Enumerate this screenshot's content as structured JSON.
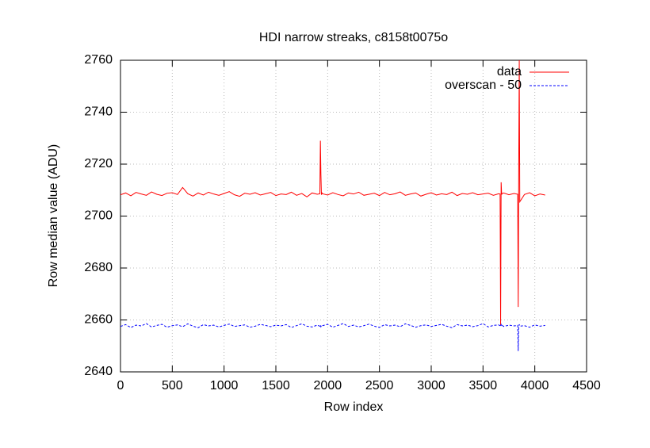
{
  "chart_data": {
    "type": "line",
    "title": "HDI narrow streaks, c8158t0075o",
    "xlabel": "Row index",
    "ylabel": "Row median value (ADU)",
    "x": [
      0,
      50,
      100,
      150,
      200,
      250,
      300,
      350,
      400,
      450,
      500,
      550,
      600,
      650,
      700,
      750,
      800,
      850,
      900,
      950,
      1000,
      1050,
      1100,
      1150,
      1200,
      1250,
      1300,
      1350,
      1400,
      1450,
      1500,
      1550,
      1600,
      1650,
      1700,
      1750,
      1800,
      1850,
      1900,
      1925,
      1930,
      1935,
      1940,
      1945,
      1950,
      2000,
      2050,
      2100,
      2150,
      2200,
      2250,
      2300,
      2350,
      2400,
      2450,
      2500,
      2550,
      2600,
      2650,
      2700,
      2750,
      2800,
      2850,
      2900,
      2950,
      3000,
      3050,
      3100,
      3150,
      3200,
      3250,
      3300,
      3350,
      3400,
      3450,
      3500,
      3550,
      3600,
      3650,
      3665,
      3670,
      3675,
      3680,
      3685,
      3700,
      3750,
      3800,
      3835,
      3840,
      3845,
      3850,
      3855,
      3900,
      3950,
      4000,
      4050,
      4100
    ],
    "series": [
      {
        "name": "data",
        "color": "#ff0000",
        "values": [
          2708.2,
          2708.9,
          2707.8,
          2709.1,
          2708.5,
          2708.0,
          2709.3,
          2708.4,
          2707.9,
          2708.8,
          2709.0,
          2708.3,
          2711.0,
          2708.6,
          2707.7,
          2708.9,
          2708.1,
          2709.2,
          2708.5,
          2708.0,
          2708.7,
          2709.4,
          2708.2,
          2707.6,
          2708.8,
          2708.4,
          2709.0,
          2708.1,
          2708.6,
          2709.1,
          2707.9,
          2708.5,
          2708.3,
          2709.2,
          2708.0,
          2708.7,
          2707.4,
          2708.9,
          2708.4,
          2708.6,
          2729,
          2716,
          2708.2,
          2708.9,
          2708.6,
          2708.1,
          2709.0,
          2708.3,
          2707.8,
          2708.9,
          2708.5,
          2709.2,
          2708.0,
          2708.4,
          2708.8,
          2707.9,
          2709.1,
          2708.2,
          2708.6,
          2709.3,
          2708.0,
          2708.5,
          2708.9,
          2707.7,
          2708.4,
          2709.0,
          2708.1,
          2708.6,
          2708.3,
          2709.2,
          2707.9,
          2708.7,
          2708.4,
          2709.0,
          2708.2,
          2708.5,
          2708.8,
          2708.0,
          2708.6,
          2708.5,
          2658,
          2713,
          2708.3,
          2708.7,
          2708.9,
          2708.2,
          2708.7,
          2708.4,
          2665,
          2720,
          2760,
          2705.5,
          2708.3,
          2709.0,
          2707.8,
          2708.5,
          2708.1
        ]
      },
      {
        "name": "overscan - 50",
        "color": "#0000ff",
        "dash": true,
        "values": [
          2657.5,
          2658.2,
          2657.1,
          2658.0,
          2657.7,
          2658.6,
          2657.3,
          2657.9,
          2658.3,
          2657.2,
          2657.8,
          2658.1,
          2657.4,
          2658.5,
          2657.6,
          2657.0,
          2658.2,
          2657.7,
          2658.0,
          2657.3,
          2657.9,
          2658.4,
          2657.5,
          2657.8,
          2658.1,
          2657.2,
          2657.6,
          2658.3,
          2657.9,
          2657.4,
          2658.0,
          2657.7,
          2658.2,
          2657.1,
          2657.8,
          2658.5,
          2657.6,
          2657.3,
          2658.0,
          2657.6,
          2658.1,
          2657.4,
          2657.9,
          2657.7,
          2657.8,
          2658.3,
          2657.2,
          2657.9,
          2658.6,
          2657.5,
          2658.0,
          2657.3,
          2657.8,
          2658.4,
          2657.6,
          2657.1,
          2658.2,
          2657.7,
          2658.0,
          2657.4,
          2658.5,
          2657.9,
          2657.2,
          2657.8,
          2658.1,
          2657.5,
          2657.9,
          2658.3,
          2657.6,
          2657.0,
          2658.2,
          2657.7,
          2658.0,
          2657.4,
          2657.8,
          2658.6,
          2657.3,
          2657.9,
          2658.1,
          2657.8,
          2657.4,
          2658.2,
          2657.6,
          2657.9,
          2657.5,
          2658.0,
          2657.7,
          2657.9,
          2648,
          2657.4,
          2658.3,
          2657.6,
          2657.8,
          2657.2,
          2658.1,
          2657.6,
          2657.9
        ]
      }
    ],
    "xlim": [
      0,
      4500
    ],
    "xticks": [
      0,
      500,
      1000,
      1500,
      2000,
      2500,
      3000,
      3500,
      4000,
      4500
    ],
    "ylim": [
      2640,
      2760
    ],
    "yticks": [
      2640,
      2660,
      2680,
      2700,
      2720,
      2740,
      2760
    ],
    "grid": true,
    "legend": "top-right"
  }
}
